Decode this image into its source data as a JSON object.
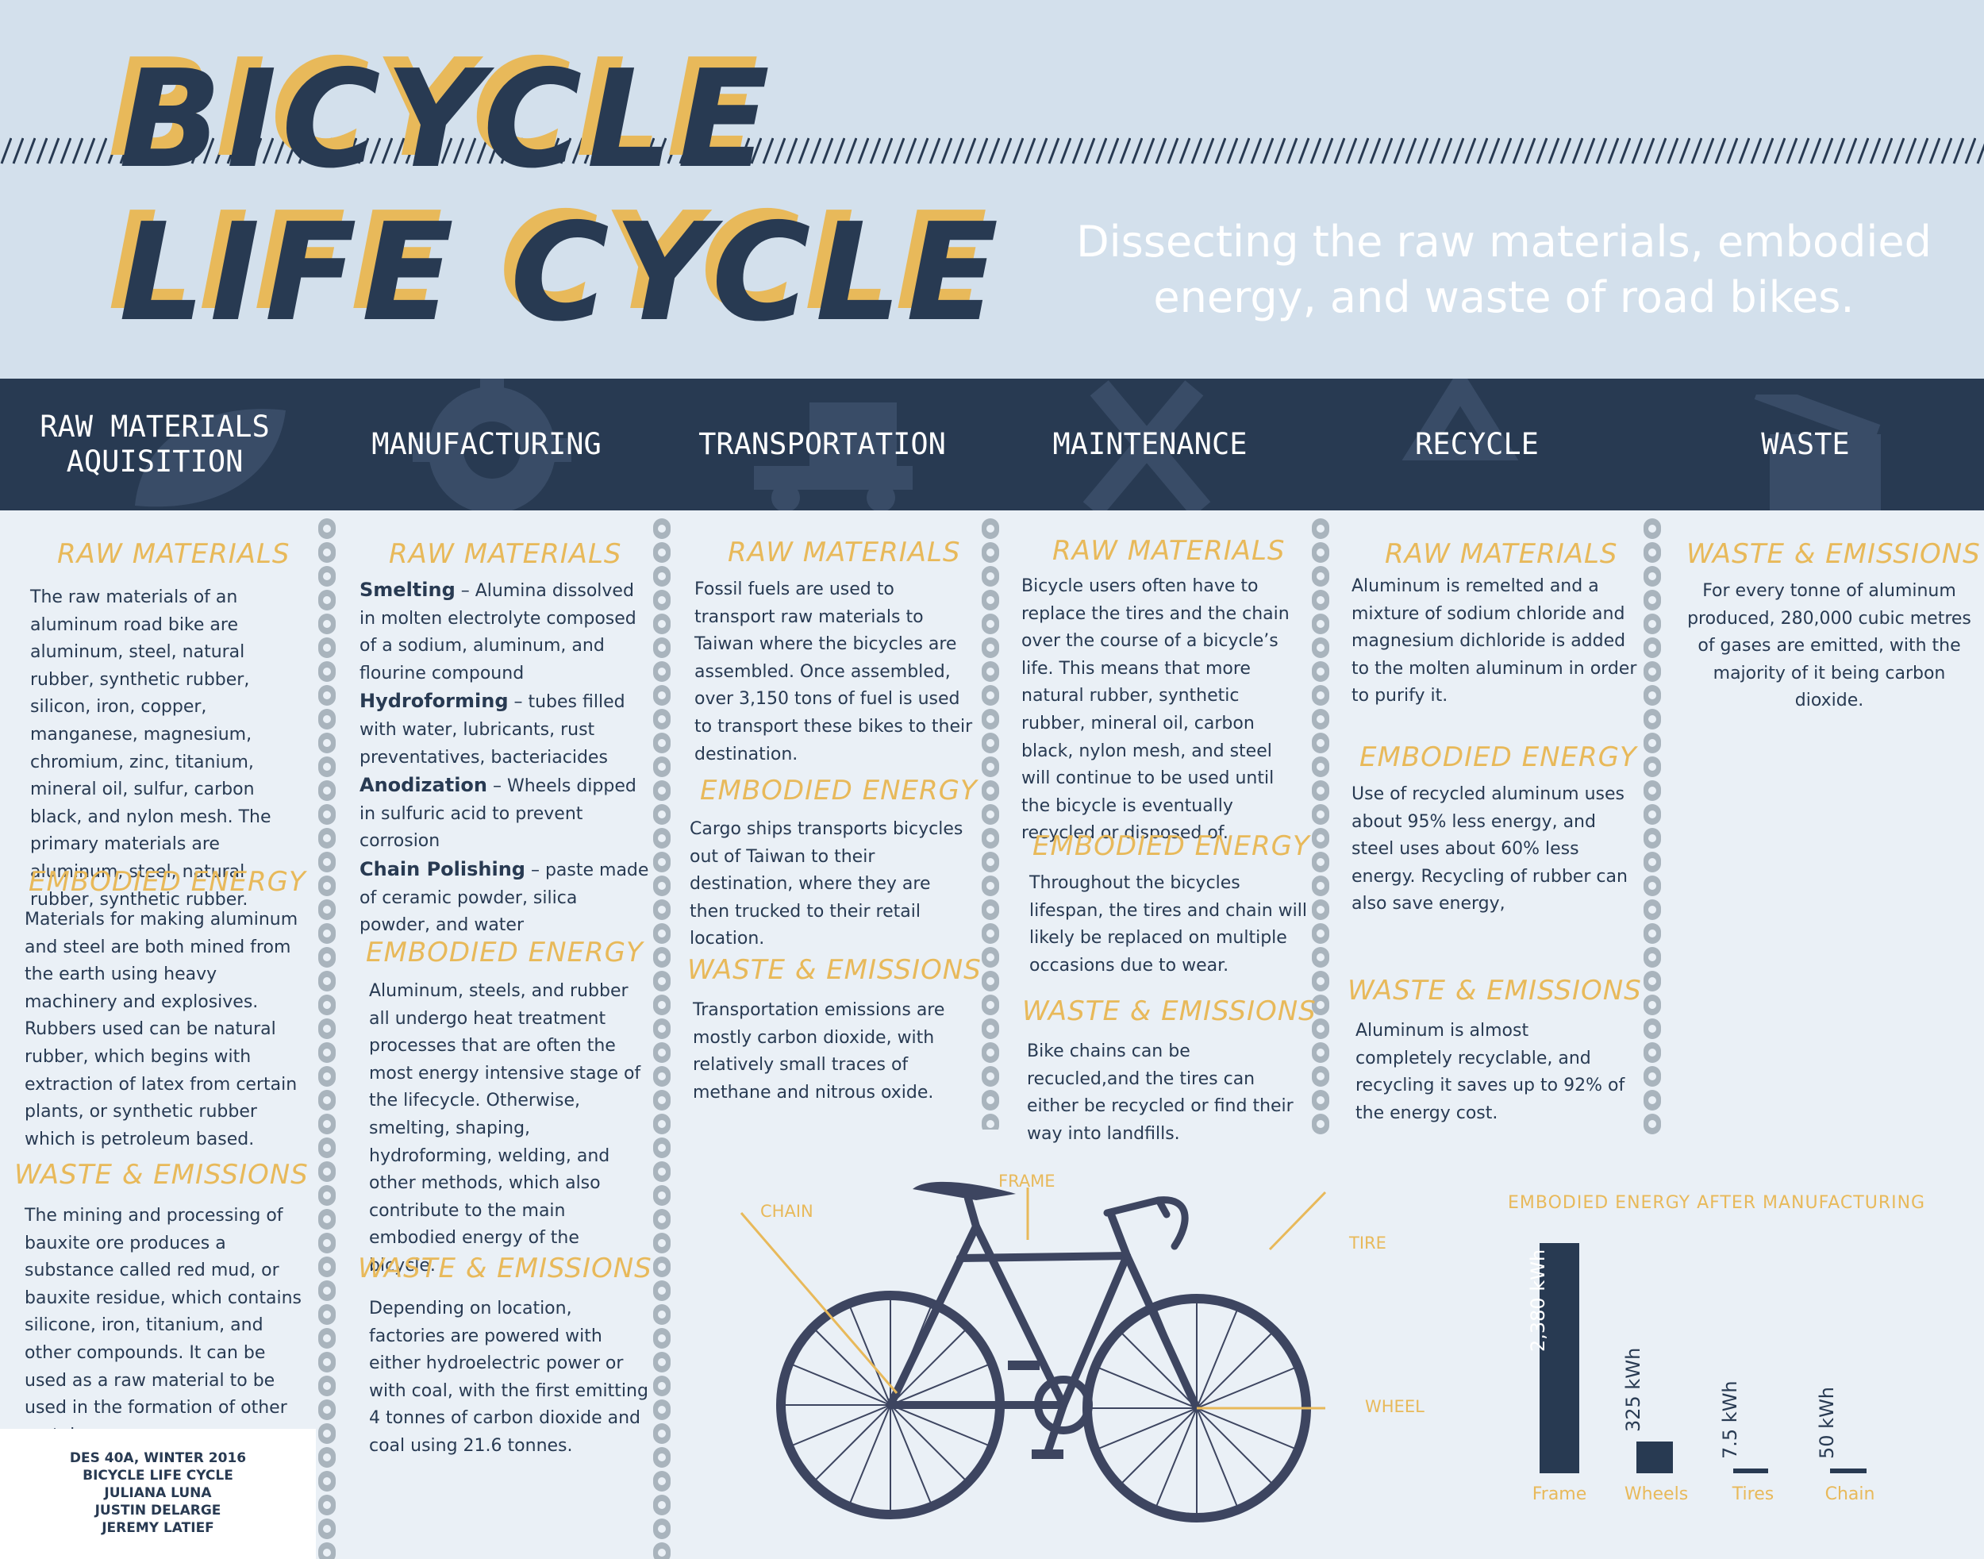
{
  "header": {
    "title_line1": "BICYCLE",
    "title_line2": "LIFE CYCLE",
    "subtitle": "Dissecting the raw materials, embodied energy, and waste of road bikes."
  },
  "stages": [
    "RAW MATERIALS\nAQUISITION",
    "MANUFACTURING",
    "TRANSPORTATION",
    "MAINTENANCE",
    "RECYCLE",
    "WASTE"
  ],
  "stage_icons": [
    "leaf-icon",
    "gear-icon",
    "forklift-icon",
    "wrench-screwdriver-icon",
    "recycle-icon",
    "trash-can-icon"
  ],
  "raw": {
    "h1": "RAW MATERIALS",
    "p1": "The raw materials of an aluminum road bike are aluminum, steel, natural rubber, synthetic rubber, silicon, iron, copper, manganese, magnesium, chromium, zinc, titanium, mineral oil, sulfur, carbon black, and nylon mesh. The primary materials are aluminum, steel, natural rubber, synthetic rubber.",
    "h2": "EMBODIED ENERGY",
    "p2": "Materials for making aluminum and steel are both mined from the earth using heavy machinery and explosives. Rubbers used can be natural rubber, which begins with extraction of latex from certain plants, or synthetic rubber which is petroleum based.",
    "h3": "WASTE & EMISSIONS",
    "p3": "The mining and processing of bauxite ore produces a substance called red mud, or bauxite residue, which contains silicone, iron, titanium, and other compounds. It can be used as a raw material to be used in the formation of other metals."
  },
  "manufacturing": {
    "h1": "RAW MATERIALS",
    "items": [
      {
        "term": "Smelting",
        "text": " – Alumina dissolved in molten electrolyte composed of a sodium, aluminum, and flourine compound"
      },
      {
        "term": "Hydroforming",
        "text": " – tubes filled with water, lubricants, rust preventatives, bacteriacides"
      },
      {
        "term": "Anodization",
        "text": " – Wheels dipped in sulfuric acid to prevent corrosion"
      },
      {
        "term": "Chain Polishing",
        "text": " – paste made of ceramic powder, silica powder, and water"
      }
    ],
    "h2": "EMBODIED ENERGY",
    "p2": "Aluminum, steels, and rubber all undergo heat treatment processes that are often the most energy intensive stage of the lifecycle. Otherwise, smelting, shaping, hydroforming, welding, and other methods, which also contribute to the main embodied energy of the bicycle.",
    "h3": "WASTE & EMISSIONS",
    "p3": "Depending on location, factories are powered with either hydroelectric power or with coal, with the first emitting 4 tonnes of carbon dioxide and coal using 21.6 tonnes."
  },
  "transportation": {
    "h1": "RAW MATERIALS",
    "p1": "Fossil fuels are used to transport raw materials to Taiwan where the bicycles are assembled. Once assembled, over 3,150 tons of fuel is used to transport these bikes to their destination.",
    "h2": "EMBODIED ENERGY",
    "p2": "Cargo ships transports bicycles out of Taiwan to their destination, where they are then trucked to their retail location.",
    "h3": "WASTE & EMISSIONS",
    "p3": "Transportation emissions are mostly carbon dioxide, with relatively small traces of methane and nitrous oxide."
  },
  "maintenance": {
    "h1": "RAW MATERIALS",
    "p1": "Bicycle users often have to replace the tires and the chain over the course of a bicycle’s life. This means that more natural rubber, synthetic rubber, mineral oil, carbon black, nylon mesh, and steel will continue to be used until the bicycle is eventually recycled or disposed of.",
    "h2": "EMBODIED ENERGY",
    "p2": "Throughout the bicycles lifespan, the tires and chain will likely be replaced on multiple occasions due to wear.",
    "h3": "WASTE & EMISSIONS",
    "p3": "Bike chains can be recucled,and the tires can either be recycled or find their way into landfills."
  },
  "recycle": {
    "h1": "RAW MATERIALS",
    "p1": "Aluminum is remelted and a mixture of sodium chloride and magnesium dichloride is added to the molten aluminum in order to purify it.",
    "h2": "EMBODIED ENERGY",
    "p2": "Use of recycled aluminum uses about 95% less energy, and steel uses about 60% less energy. Recycling of rubber can also save energy,",
    "h3": "WASTE & EMISSIONS",
    "p3": "Aluminum is almost completely recyclable, and recycling it saves up to 92% of the energy cost."
  },
  "waste": {
    "h1": "WASTE & EMISSIONS",
    "p1": "For every tonne of aluminum produced, 280,000 cubic metres of gases are emitted, with the majority of it being carbon dioxide."
  },
  "credits": [
    "DES 40A, WINTER 2016",
    "BICYCLE LIFE CYCLE",
    "JULIANA LUNA",
    "JUSTIN DELARGE",
    "JEREMY LATIEF"
  ],
  "bike_labels": {
    "chain": "CHAIN",
    "frame": "FRAME",
    "tire": "TIRE",
    "wheel": "WHEEL"
  },
  "chart_data": {
    "type": "bar",
    "title": "EMBODIED ENERGY AFTER MANUFACTURING",
    "categories": [
      "Frame",
      "Wheels",
      "Tires",
      "Chain"
    ],
    "values": [
      2380,
      325,
      7.5,
      50
    ],
    "value_labels": [
      "2,380 kWh",
      "325 kWh",
      "7.5 kWh",
      "50 kWh"
    ],
    "unit": "kWh",
    "colors": {
      "bar": "#283a52",
      "label": "#e8b95a"
    }
  }
}
